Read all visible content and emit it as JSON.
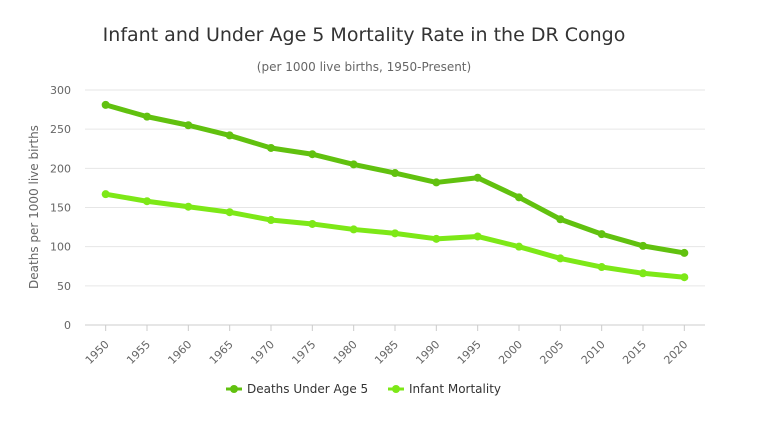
{
  "chart_data": {
    "type": "line",
    "title": "Infant and Under Age 5 Mortality Rate in the DR Congo",
    "subtitle": "(per 1000 live births, 1950-Present)",
    "xlabel": "",
    "ylabel": "Deaths per 1000 live births",
    "categories": [
      "1950",
      "1955",
      "1960",
      "1965",
      "1970",
      "1975",
      "1980",
      "1985",
      "1990",
      "1995",
      "2000",
      "2005",
      "2010",
      "2015",
      "2020"
    ],
    "ylim": [
      0,
      300
    ],
    "yticks": [
      "0",
      "50",
      "100",
      "150",
      "200",
      "250",
      "300"
    ],
    "grid": true,
    "legend_position": "bottom",
    "series": [
      {
        "name": "Deaths Under Age 5",
        "color": "#61c10f",
        "values": [
          281,
          266,
          255,
          242,
          226,
          218,
          205,
          194,
          182,
          188,
          163,
          135,
          116,
          101,
          92
        ]
      },
      {
        "name": "Infant Mortality",
        "color": "#7de817",
        "values": [
          167,
          158,
          151,
          144,
          134,
          129,
          122,
          117,
          110,
          113,
          100,
          85,
          74,
          66,
          61
        ]
      }
    ]
  }
}
